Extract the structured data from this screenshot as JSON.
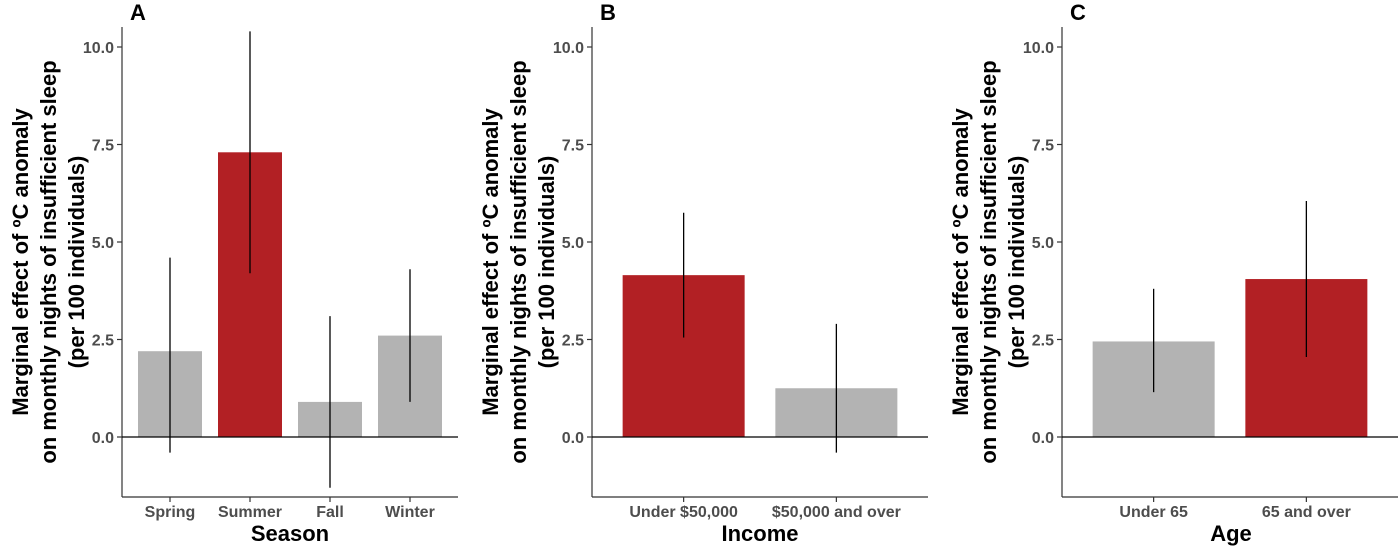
{
  "colors": {
    "highlight": "#b22024",
    "base": "#b3b3b3"
  },
  "chart_data": [
    {
      "type": "bar",
      "panel": "A",
      "xlabel": "Season",
      "ylabel": [
        "Marginal effect of ºC anomaly",
        "on monthly nights of insufficient sleep",
        "(per 100 individuals)"
      ],
      "categories": [
        "Spring",
        "Summer",
        "Fall",
        "Winter"
      ],
      "values": [
        2.2,
        7.3,
        0.9,
        2.6
      ],
      "ci_low": [
        -0.4,
        4.2,
        -1.3,
        0.9
      ],
      "ci_high": [
        4.6,
        10.4,
        3.1,
        4.3
      ],
      "highlight": [
        false,
        true,
        false,
        false
      ],
      "yticks": [
        "0.0",
        "2.5",
        "5.0",
        "7.5",
        "10.0"
      ],
      "ylim": [
        -1.6,
        10.6
      ]
    },
    {
      "type": "bar",
      "panel": "B",
      "xlabel": "Income",
      "ylabel": [
        "Marginal effect of ºC anomaly",
        "on monthly nights of insufficient sleep",
        "(per 100 individuals)"
      ],
      "categories": [
        "Under $50,000",
        "$50,000 and over"
      ],
      "values": [
        4.15,
        1.25
      ],
      "ci_low": [
        2.55,
        -0.4
      ],
      "ci_high": [
        5.75,
        2.9
      ],
      "highlight": [
        true,
        false
      ],
      "yticks": [
        "0.0",
        "2.5",
        "5.0",
        "7.5",
        "10.0"
      ],
      "ylim": [
        -1.6,
        10.6
      ]
    },
    {
      "type": "bar",
      "panel": "C",
      "xlabel": "Age",
      "ylabel": [
        "Marginal effect of ºC anomaly",
        "on monthly nights of insufficient sleep",
        "(per 100 individuals)"
      ],
      "categories": [
        "Under 65",
        "65 and over"
      ],
      "values": [
        2.45,
        4.05
      ],
      "ci_low": [
        1.15,
        2.05
      ],
      "ci_high": [
        3.8,
        6.05
      ],
      "highlight": [
        false,
        true
      ],
      "yticks": [
        "0.0",
        "2.5",
        "5.0",
        "7.5",
        "10.0"
      ],
      "ylim": [
        -1.6,
        10.6
      ]
    }
  ]
}
